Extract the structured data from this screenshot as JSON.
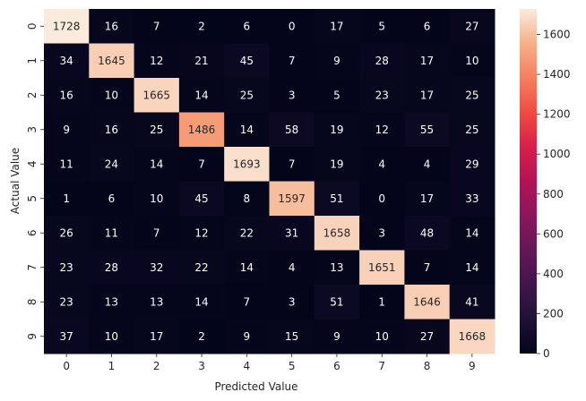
{
  "chart_data": {
    "type": "heatmap",
    "title": "",
    "xlabel": "Predicted Value",
    "ylabel": "Actual Value",
    "x_categories": [
      "0",
      "1",
      "2",
      "3",
      "4",
      "5",
      "6",
      "7",
      "8",
      "9"
    ],
    "y_categories": [
      "0",
      "1",
      "2",
      "3",
      "4",
      "5",
      "6",
      "7",
      "8",
      "9"
    ],
    "values": [
      [
        1728,
        16,
        7,
        2,
        6,
        0,
        17,
        5,
        6,
        27
      ],
      [
        34,
        1645,
        12,
        21,
        45,
        7,
        9,
        28,
        17,
        10
      ],
      [
        16,
        10,
        1665,
        14,
        25,
        3,
        5,
        23,
        17,
        25
      ],
      [
        9,
        16,
        25,
        1486,
        14,
        58,
        19,
        12,
        55,
        25
      ],
      [
        11,
        24,
        14,
        7,
        1693,
        7,
        19,
        4,
        4,
        29
      ],
      [
        1,
        6,
        10,
        45,
        8,
        1597,
        51,
        0,
        17,
        33
      ],
      [
        26,
        11,
        7,
        12,
        22,
        31,
        1658,
        3,
        48,
        14
      ],
      [
        23,
        28,
        32,
        22,
        14,
        4,
        13,
        1651,
        7,
        14
      ],
      [
        23,
        13,
        13,
        14,
        7,
        3,
        51,
        1,
        1646,
        41
      ],
      [
        37,
        10,
        17,
        2,
        9,
        15,
        9,
        10,
        27,
        1668
      ]
    ],
    "colormap": "rocket",
    "vmin": 0,
    "vmax": 1728,
    "colorbar_ticks": [
      0,
      200,
      400,
      600,
      800,
      1000,
      1200,
      1400,
      1600
    ],
    "annotations": true
  }
}
